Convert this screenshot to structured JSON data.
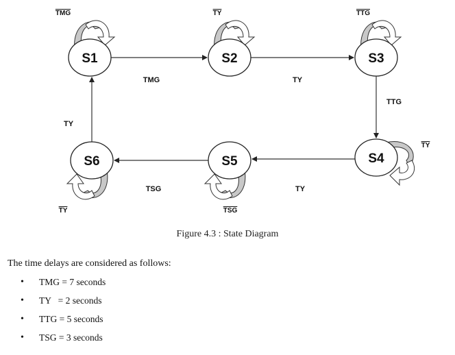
{
  "diagram": {
    "states": [
      {
        "id": "S1",
        "label": "S1"
      },
      {
        "id": "S2",
        "label": "S2"
      },
      {
        "id": "S3",
        "label": "S3"
      },
      {
        "id": "S4",
        "label": "S4"
      },
      {
        "id": "S5",
        "label": "S5"
      },
      {
        "id": "S6",
        "label": "S6"
      }
    ],
    "transitions": [
      {
        "from": "S1",
        "to": "S2",
        "label": "TMG"
      },
      {
        "from": "S2",
        "to": "S3",
        "label": "TY"
      },
      {
        "from": "S3",
        "to": "S4",
        "label": "TTG"
      },
      {
        "from": "S4",
        "to": "S5",
        "label": "TY"
      },
      {
        "from": "S5",
        "to": "S6",
        "label": "TSG"
      },
      {
        "from": "S6",
        "to": "S1",
        "label": "TY"
      }
    ],
    "self_loops": [
      {
        "state": "S1",
        "label": "TMG",
        "overline": true
      },
      {
        "state": "S2",
        "label": "TY",
        "overline": true
      },
      {
        "state": "S3",
        "label": "TTG",
        "overline": true
      },
      {
        "state": "S4",
        "label": "TY",
        "overline": true
      },
      {
        "state": "S5",
        "label": "TSG",
        "overline": true
      },
      {
        "state": "S6",
        "label": "TY",
        "overline": true
      }
    ],
    "colors": {
      "loop_fill": "#c8c8c8",
      "stroke": "#333333"
    }
  },
  "caption": "Figure 4.3 : State Diagram",
  "intro": "The time delays are considered as follows:",
  "delays": [
    "TMG = 7 seconds",
    "TY   = 2 seconds",
    "TTG = 5 seconds",
    "TSG = 3 seconds"
  ]
}
